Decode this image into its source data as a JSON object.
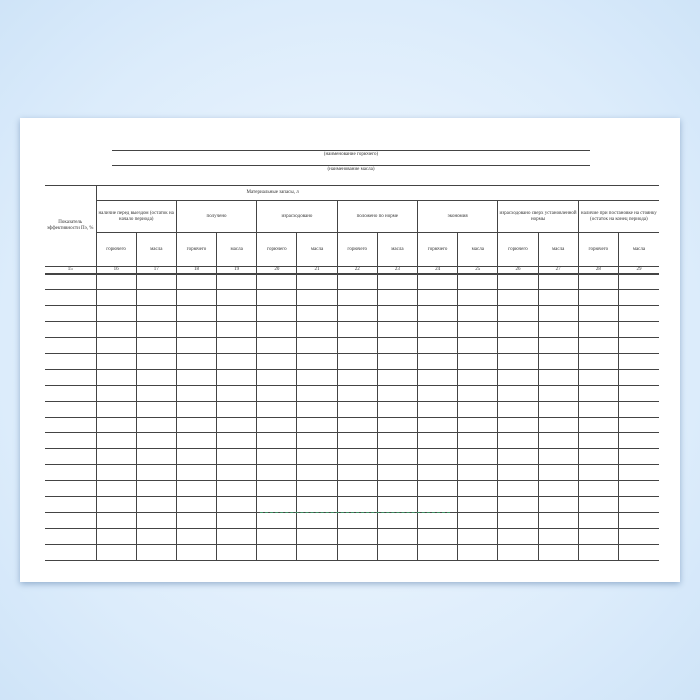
{
  "header": {
    "fuel_caption": "(наименование горючего)",
    "oil_caption": "(наименование масла)"
  },
  "table": {
    "left_header": "Показатель эффективности Пэ, %",
    "group_header": "Материальные запасы, л",
    "groups": [
      "наличие перед выездом (остаток на начало периода)",
      "получено",
      "израсходовано",
      "положено по норме",
      "экономия",
      "израсходовано сверх установленной нормы",
      "наличие при постановке на стоянку (остаток на конец периода)"
    ],
    "sub_fuel": "горючего",
    "sub_oil": "масла",
    "column_numbers": [
      "15",
      "16",
      "17",
      "18",
      "19",
      "20",
      "21",
      "22",
      "23",
      "24",
      "25",
      "26",
      "27",
      "28",
      "29"
    ],
    "empty_rows": 18
  }
}
